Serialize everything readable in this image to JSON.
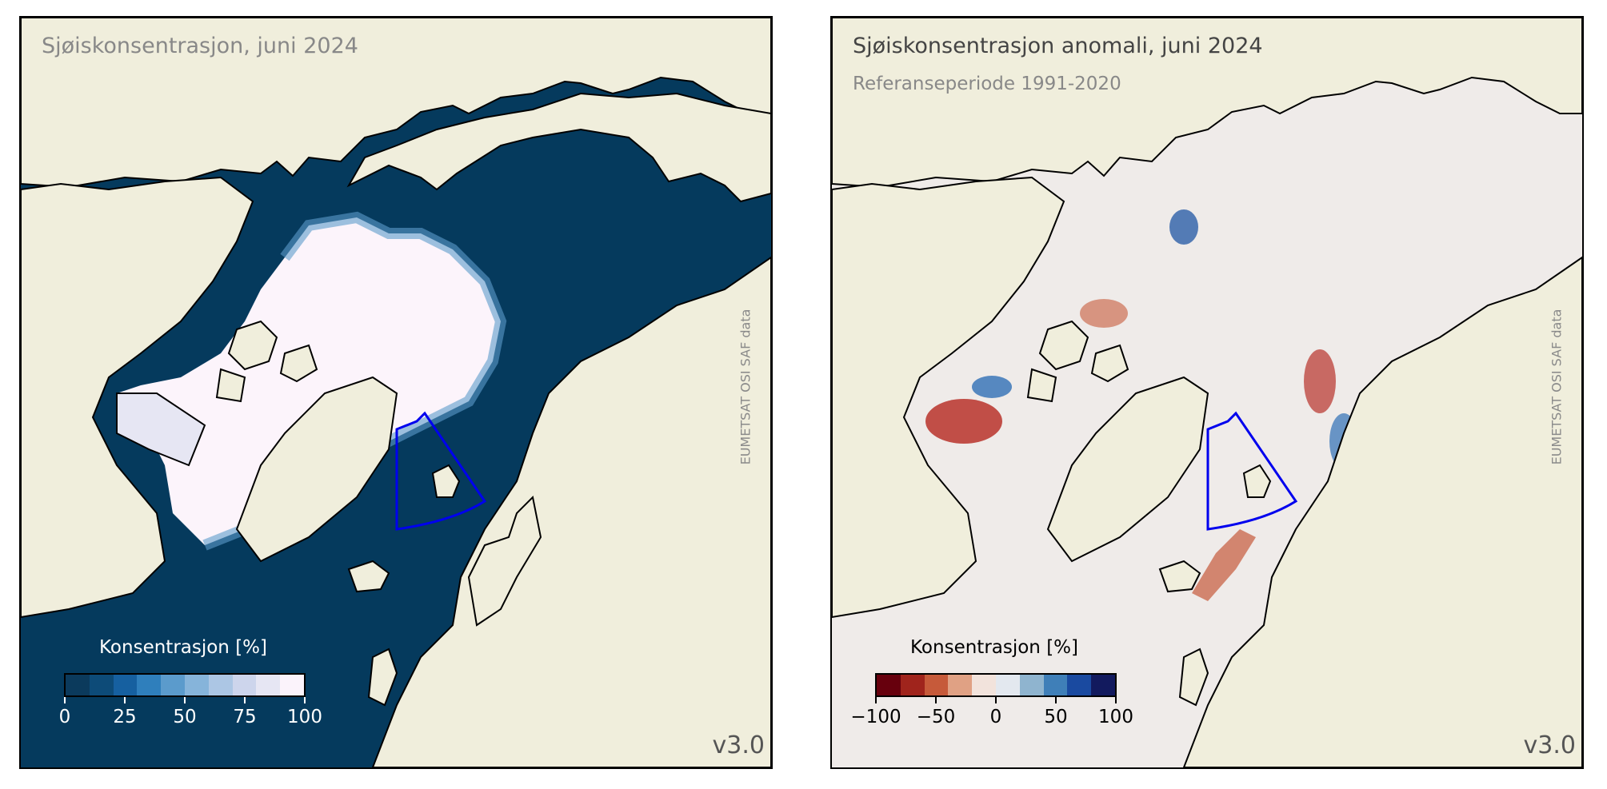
{
  "left_panel": {
    "title": "Sjøiskonsentrasjon, juni 2024",
    "credit": "EUMETSAT OSI SAF data",
    "version": "v3.0",
    "colorbar": {
      "title": "Konsentrasjon [%]",
      "ticks": [
        "0",
        "25",
        "50",
        "75",
        "100"
      ],
      "colors": [
        "#0b3a5c",
        "#0d4b78",
        "#1660a0",
        "#2f7fbc",
        "#5b9bcc",
        "#86b4da",
        "#acc6e4",
        "#cdd5ec",
        "#e6e6f3",
        "#fbf3fb"
      ]
    }
  },
  "right_panel": {
    "title": "Sjøiskonsentrasjon anomali, juni 2024",
    "subtitle": "Referanseperiode 1991-2020",
    "credit": "EUMETSAT OSI SAF data",
    "version": "v3.0",
    "colorbar": {
      "title": "Konsentrasjon [%]",
      "ticks": [
        "−100",
        "−50",
        "0",
        "50",
        "100"
      ],
      "colors": [
        "#67000d",
        "#a0241c",
        "#c65a3a",
        "#e0a184",
        "#f2e3dc",
        "#e3e8ef",
        "#8fb4cf",
        "#3f7fb8",
        "#1a4aa0",
        "#121a5e"
      ]
    }
  },
  "colors": {
    "ocean_left": "#053a5d",
    "ocean_right": "#efebe9",
    "land": "#f0eedc",
    "ice": "#fcf4fb",
    "box_outline": "#0000ee"
  }
}
